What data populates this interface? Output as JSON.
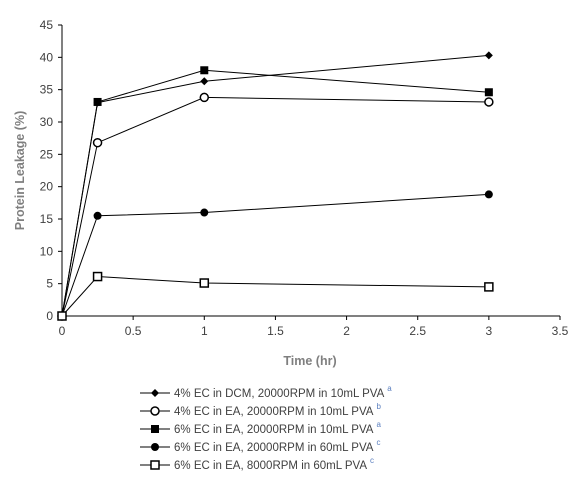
{
  "chart_data": {
    "type": "line",
    "xlabel": "Time (hr)",
    "ylabel": "Protein Leakage (%)",
    "xlim": [
      0,
      3.5
    ],
    "ylim": [
      0,
      45
    ],
    "xticks": [
      "0",
      "0.5",
      "1",
      "1.5",
      "2",
      "2.5",
      "3",
      "3.5"
    ],
    "yticks": [
      "0",
      "5",
      "10",
      "15",
      "20",
      "25",
      "30",
      "35",
      "40",
      "45"
    ],
    "grid": false,
    "legend_position": "bottom",
    "x": [
      0,
      0.25,
      1,
      3
    ],
    "series": [
      {
        "name": "4% EC in DCM, 20000RPM in 10mL PVA",
        "sup": "a",
        "marker": "diamond",
        "values": [
          0,
          33.0,
          36.3,
          40.3
        ]
      },
      {
        "name": "4% EC in EA, 20000RPM in 10mL PVA",
        "sup": "b",
        "marker": "circle-open",
        "values": [
          0,
          26.8,
          33.8,
          33.1
        ]
      },
      {
        "name": "6% EC in EA, 20000RPM in 10mL PVA",
        "sup": "a",
        "marker": "square",
        "values": [
          0,
          33.1,
          38.0,
          34.6
        ]
      },
      {
        "name": "6% EC in EA, 20000RPM in 60mL PVA",
        "sup": "c",
        "marker": "circle",
        "values": [
          0,
          15.5,
          16.0,
          18.8
        ]
      },
      {
        "name": "6% EC in EA, 8000RPM in 60mL PVA",
        "sup": "c",
        "marker": "square-open",
        "values": [
          0,
          6.1,
          5.1,
          4.5
        ]
      }
    ],
    "colors": {
      "line": "#000000",
      "axis": "#000000",
      "superscript": "#5b7fbf"
    }
  }
}
